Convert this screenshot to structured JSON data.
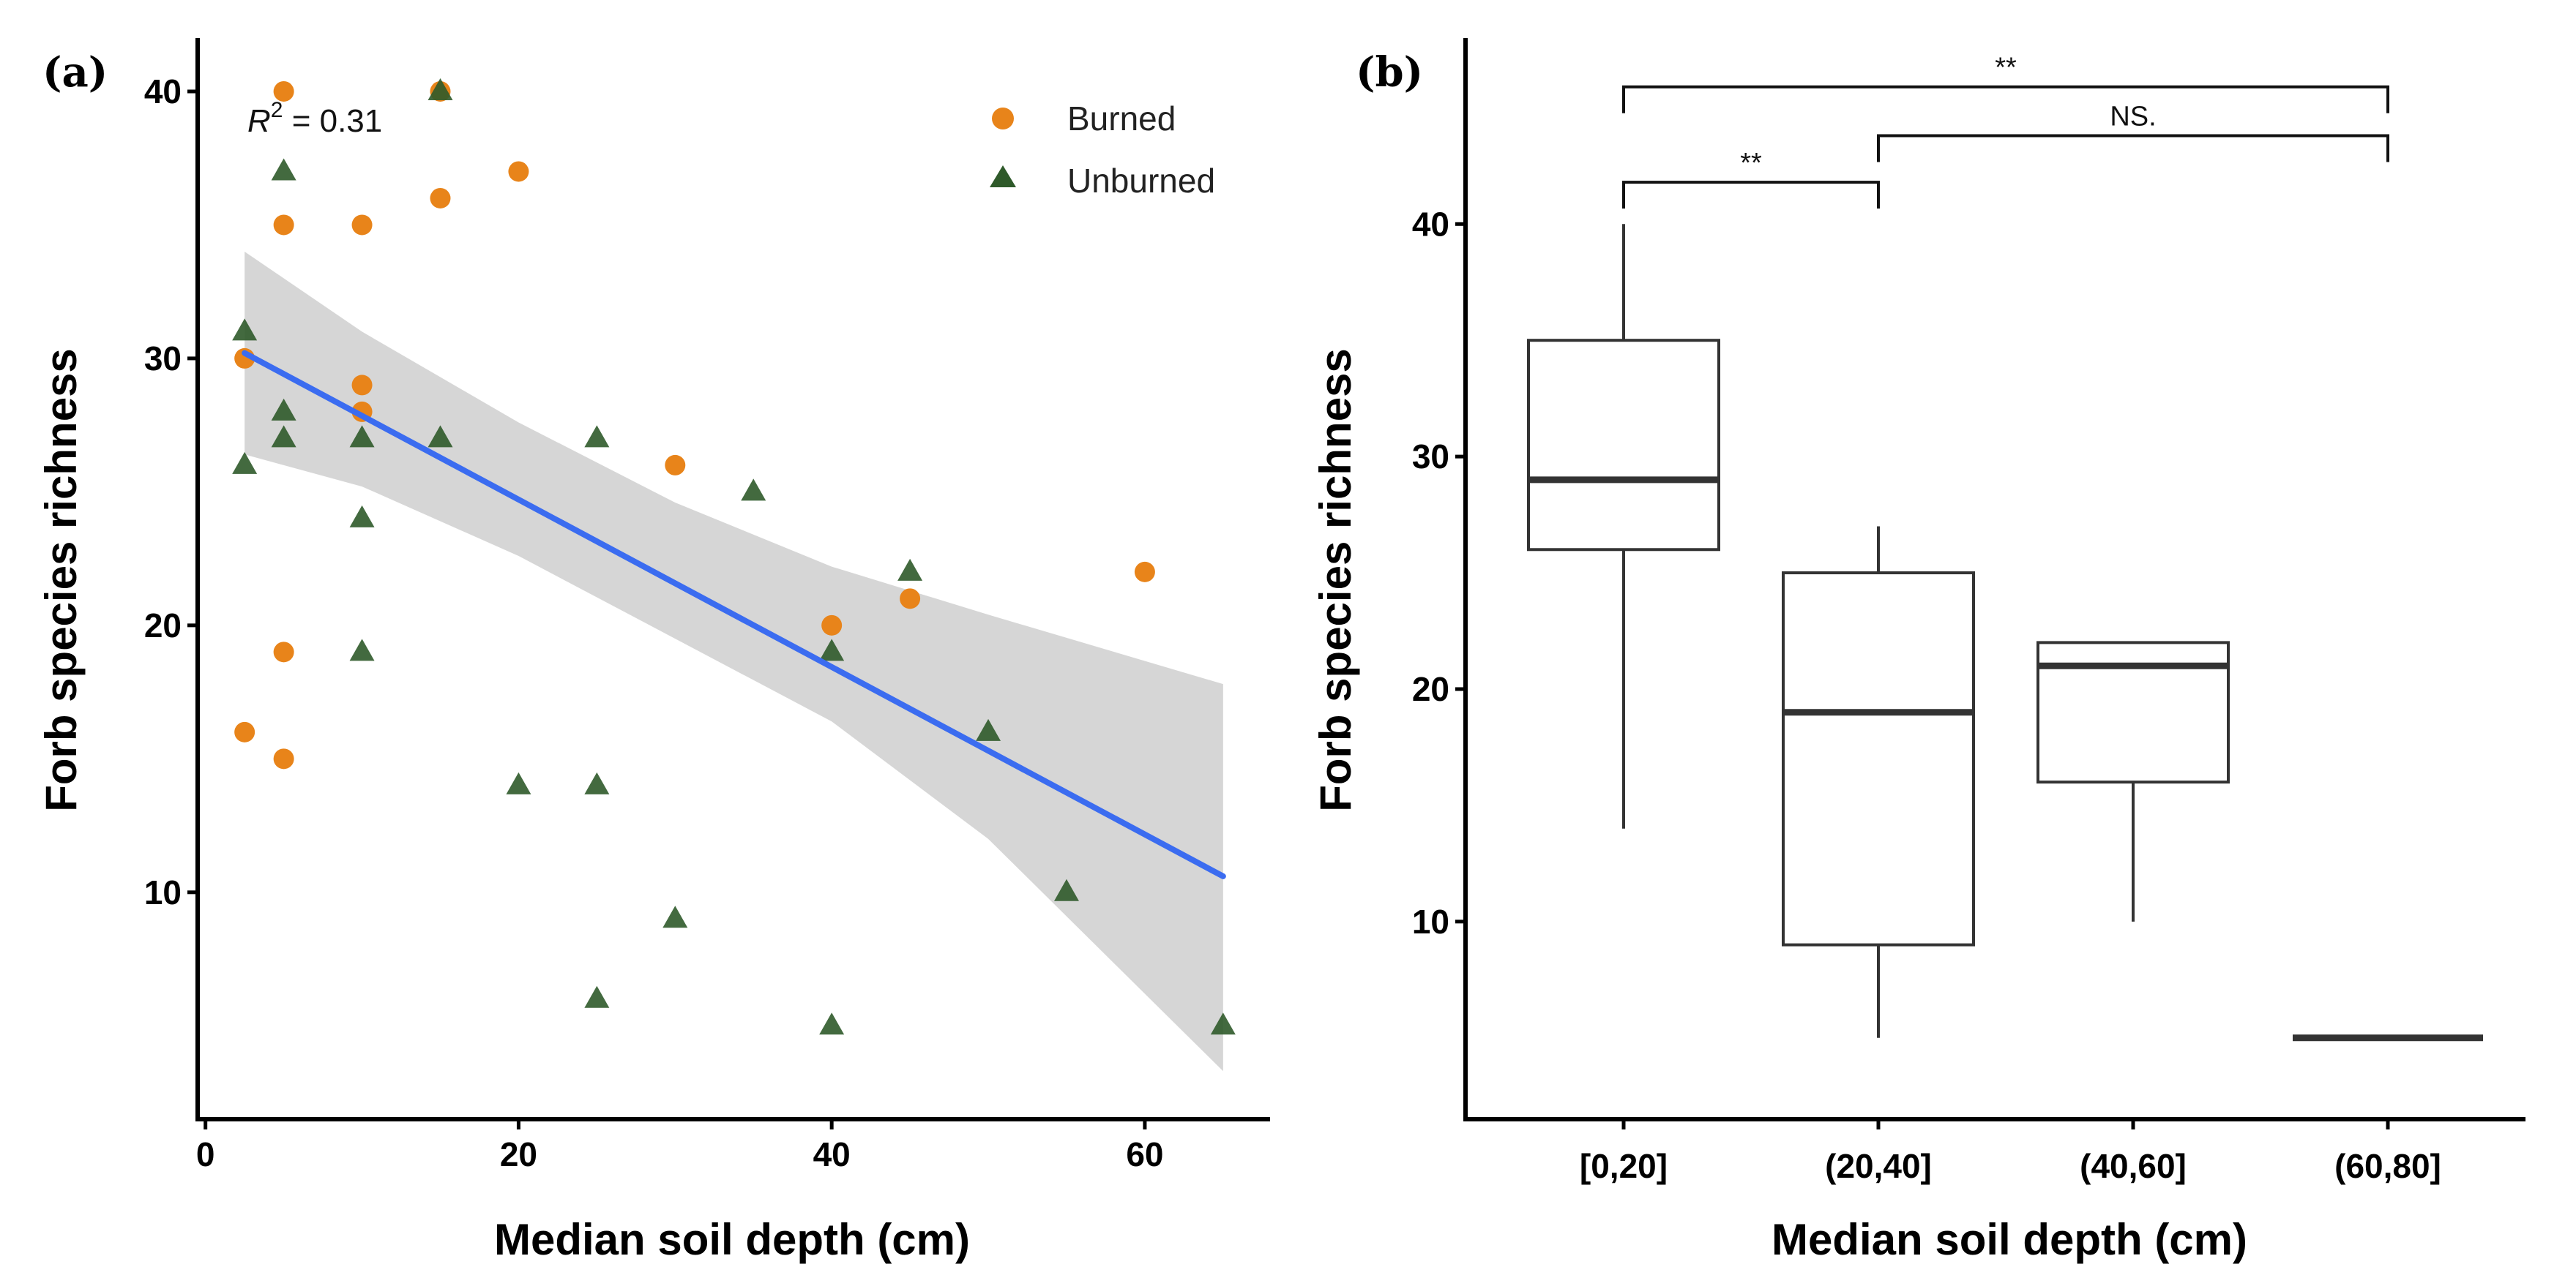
{
  "chart_data": [
    {
      "panel_label": "(a)",
      "type": "scatter",
      "xlabel": "Median soil depth (cm)",
      "ylabel": "Forb species richness",
      "xlim": [
        -0.5,
        68
      ],
      "ylim": [
        1.5,
        42
      ],
      "xticks": [
        0,
        20,
        40,
        60
      ],
      "yticks": [
        10,
        20,
        30,
        40
      ],
      "annotation": {
        "r2_symbol": "R",
        "r2_exponent": "2",
        "r2_value": " = 0.31"
      },
      "legend": {
        "position": "top-right",
        "entries": [
          "Burned",
          "Unburned"
        ]
      },
      "series": [
        {
          "name": "Burned",
          "color": "#e8841a",
          "marker": "circle",
          "points": [
            [
              2.5,
              30
            ],
            [
              2.5,
              16
            ],
            [
              5,
              40
            ],
            [
              5,
              35
            ],
            [
              5,
              19
            ],
            [
              5,
              15
            ],
            [
              10,
              35
            ],
            [
              10,
              29
            ],
            [
              10,
              28
            ],
            [
              15,
              40
            ],
            [
              15,
              36
            ],
            [
              20,
              37
            ],
            [
              30,
              26
            ],
            [
              40,
              20
            ],
            [
              45,
              21
            ],
            [
              60,
              22
            ]
          ]
        },
        {
          "name": "Unburned",
          "color": "#2f5a2a",
          "marker": "triangle",
          "points": [
            [
              2.5,
              31
            ],
            [
              2.5,
              26
            ],
            [
              5,
              37
            ],
            [
              5,
              28
            ],
            [
              5,
              27
            ],
            [
              10,
              27
            ],
            [
              10,
              24
            ],
            [
              10,
              19
            ],
            [
              15,
              40
            ],
            [
              15,
              27
            ],
            [
              20,
              14
            ],
            [
              25,
              27
            ],
            [
              25,
              14
            ],
            [
              25,
              6
            ],
            [
              30,
              9
            ],
            [
              35,
              25
            ],
            [
              40,
              19
            ],
            [
              40,
              5
            ],
            [
              45,
              22
            ],
            [
              50,
              16
            ],
            [
              55,
              10
            ],
            [
              65,
              5
            ]
          ]
        }
      ],
      "regression": {
        "color": "#3b6cf0",
        "x": [
          2.5,
          65
        ],
        "y": [
          30.2,
          10.6
        ],
        "ci_band": {
          "x": [
            2.5,
            10,
            20,
            30,
            40,
            50,
            65
          ],
          "upper": [
            34.0,
            31.0,
            27.6,
            24.6,
            22.2,
            20.4,
            17.8
          ],
          "lower": [
            26.4,
            25.2,
            22.6,
            19.5,
            16.4,
            12.0,
            3.3
          ]
        }
      }
    },
    {
      "panel_label": "(b)",
      "type": "box",
      "xlabel": "Median soil depth (cm)",
      "ylabel": "Forb species richness",
      "ylim": [
        1.5,
        48
      ],
      "yticks": [
        10,
        20,
        30,
        40
      ],
      "categories": [
        "[0,20]",
        "(20,40]",
        "(40,60]",
        "(60,80]"
      ],
      "boxes": [
        {
          "whisker_low": 14,
          "q1": 26,
          "median": 29,
          "q3": 35,
          "whisker_high": 40
        },
        {
          "whisker_low": 5,
          "q1": 9,
          "median": 19,
          "q3": 25,
          "whisker_high": 27
        },
        {
          "whisker_low": 10,
          "q1": 16,
          "median": 21,
          "q3": 22,
          "whisker_high": 22
        },
        {
          "whisker_low": 5,
          "q1": 5,
          "median": 5,
          "q3": 5,
          "whisker_high": 5
        }
      ],
      "significance": [
        {
          "from": 0,
          "to": 3,
          "y": 45.9,
          "label": "**"
        },
        {
          "from": 1,
          "to": 3,
          "y": 43.8,
          "label": "NS."
        },
        {
          "from": 0,
          "to": 1,
          "y": 41.8,
          "label": "**"
        }
      ]
    }
  ]
}
